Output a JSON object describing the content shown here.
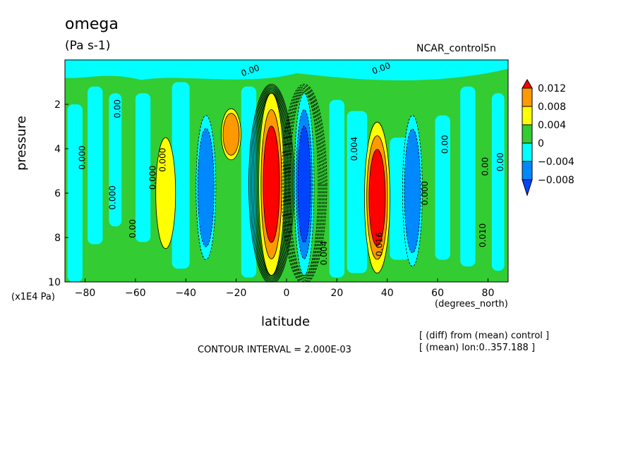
{
  "header": {
    "title": "omega",
    "units": "(Pa s-1)",
    "experiment": "NCAR_control5n"
  },
  "notes": {
    "contour_interval": "CONTOUR INTERVAL = 2.000E-03",
    "diff": "[ (diff) from (mean) control ]",
    "mean": "[ (mean) lon:0..357.188 ]"
  },
  "chart_data": {
    "type": "heatmap",
    "title": "omega",
    "xlabel": "latitude",
    "x_unit": "(degrees_north)",
    "ylabel": "pressure",
    "y_unit": "(x1E4 Pa)",
    "xlim": [
      -88,
      88
    ],
    "ylim": [
      10,
      0
    ],
    "x_ticks": [
      -80,
      -60,
      -40,
      -20,
      0,
      20,
      40,
      60,
      80
    ],
    "x_tick_labels": [
      "−80",
      "−60",
      "−40",
      "−20",
      "0",
      "20",
      "40",
      "60",
      "80"
    ],
    "y_ticks": [
      2,
      4,
      6,
      8,
      10
    ],
    "y_tick_labels": [
      "2",
      "4",
      "6",
      "8",
      "10"
    ],
    "colorbar": {
      "levels": [
        0.012,
        0.008,
        0.004,
        0,
        -0.004,
        -0.008
      ],
      "labels": [
        "0.012",
        "0.008",
        "0.004",
        "0",
        "−0.004",
        "−0.008"
      ],
      "colors": [
        "#ff0000",
        "#ff9900",
        "#ffff00",
        "#33cc33",
        "#00ffff",
        "#0088ff",
        "#0044ff"
      ]
    },
    "contour_labels": [
      {
        "text": "0.00",
        "lat": -66,
        "p": 2.2
      },
      {
        "text": "0.00",
        "lat": -14,
        "p": 0.6
      },
      {
        "text": "0.00",
        "lat": 38,
        "p": 0.5
      },
      {
        "text": "0.000",
        "lat": -80,
        "p": 4.4
      },
      {
        "text": "0.000",
        "lat": -52,
        "p": 5.3
      },
      {
        "text": "0.000",
        "lat": -48,
        "p": 4.5
      },
      {
        "text": "0.000",
        "lat": -68,
        "p": 6.2
      },
      {
        "text": "0.00",
        "lat": -60,
        "p": 7.6
      },
      {
        "text": "0.004",
        "lat": 16,
        "p": 8.7
      },
      {
        "text": "0.004",
        "lat": 28,
        "p": 4.0
      },
      {
        "text": "0.000",
        "lat": 56,
        "p": 6.0
      },
      {
        "text": "0.00",
        "lat": 64,
        "p": 3.8
      },
      {
        "text": "0.00",
        "lat": 80,
        "p": 4.8
      },
      {
        "text": "0.00",
        "lat": 86,
        "p": 4.6
      },
      {
        "text": "0.010",
        "lat": 79,
        "p": 7.9
      },
      {
        "text": "0.016",
        "lat": 38,
        "p": 8.3
      }
    ],
    "features": [
      {
        "kind": "max",
        "lat": -6,
        "p_top": 1.5,
        "p_bottom": 9.7,
        "value": 0.014
      },
      {
        "kind": "min",
        "lat": 7,
        "p_top": 1.5,
        "p_bottom": 9.7,
        "value": -0.014
      },
      {
        "kind": "max",
        "lat": 36,
        "p_top": 2.8,
        "p_bottom": 9.6,
        "value": 0.016
      },
      {
        "kind": "min",
        "lat": 50,
        "p_top": 2.5,
        "p_bottom": 9.3,
        "value": -0.008
      },
      {
        "kind": "min",
        "lat": -32,
        "p_top": 2.5,
        "p_bottom": 9.0,
        "value": -0.008
      },
      {
        "kind": "max",
        "lat": -22,
        "p_top": 2.2,
        "p_bottom": 4.5,
        "value": 0.008
      },
      {
        "kind": "max",
        "lat": -48,
        "p_top": 3.5,
        "p_bottom": 8.5,
        "value": 0.004
      }
    ]
  }
}
